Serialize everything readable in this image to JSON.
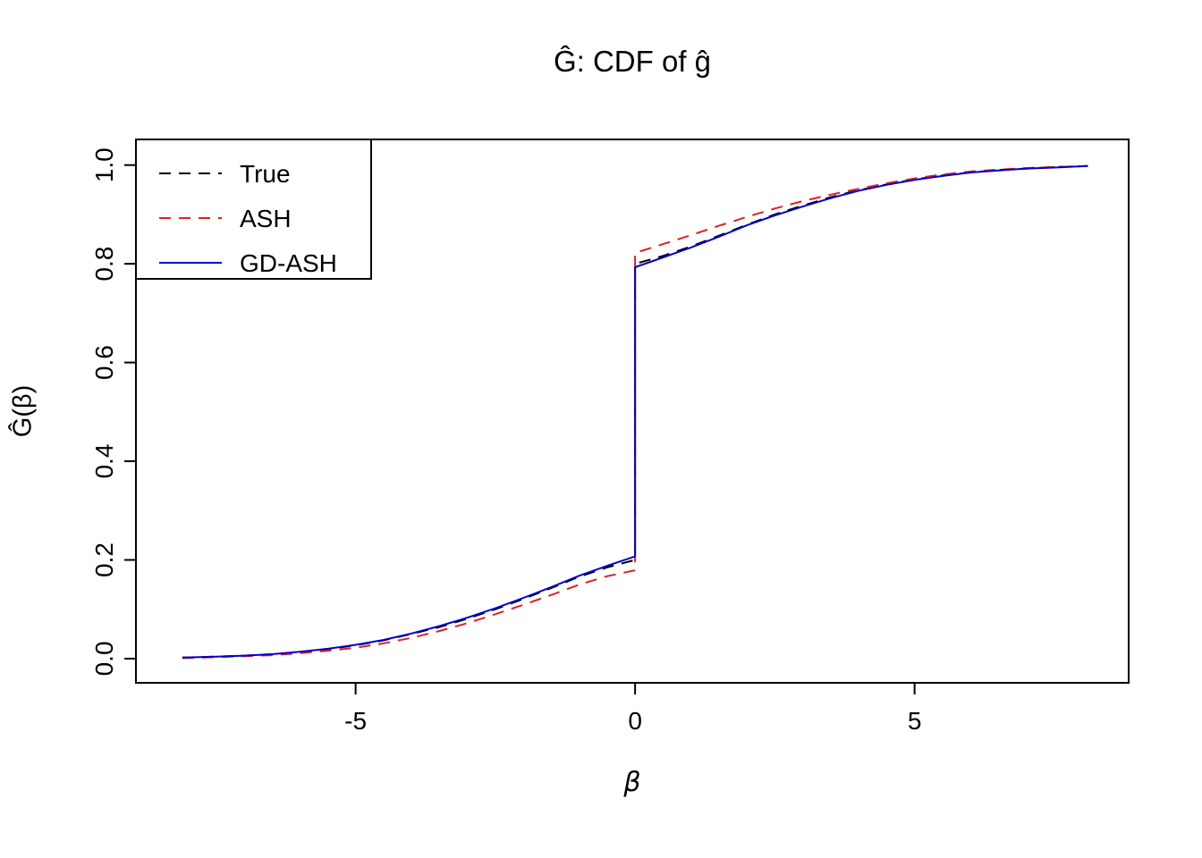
{
  "figure": {
    "title": "Ĝ: CDF of ĝ",
    "x_label": "β",
    "y_label": "Ĝ(β)"
  },
  "chart_data": {
    "type": "line",
    "title": "Ĝ: CDF of ĝ",
    "xlabel": "β",
    "ylabel": "Ĝ(β)",
    "xlim": [
      -8.93,
      8.83
    ],
    "ylim": [
      -0.049,
      1.052
    ],
    "xticks": [
      -5,
      0,
      5
    ],
    "xtick_labels": [
      "-5",
      "0",
      "5"
    ],
    "yticks": [
      0.0,
      0.2,
      0.4,
      0.6,
      0.8,
      1.0
    ],
    "ytick_labels": [
      "0.0",
      "0.2",
      "0.4",
      "0.6",
      "0.8",
      "1.0"
    ],
    "grid": false,
    "legend_position": "top-left",
    "description": "Estimated CDFs with a point mass at beta = 0; curves jump from about 0.2 to about 0.8 at zero.",
    "series": [
      {
        "name": "True",
        "color": "#000000",
        "dash": "dashed",
        "points": [
          [
            -8.1,
            0.002
          ],
          [
            -7.5,
            0.004
          ],
          [
            -7,
            0.006
          ],
          [
            -6.5,
            0.009
          ],
          [
            -6,
            0.013
          ],
          [
            -5.5,
            0.019
          ],
          [
            -5,
            0.027
          ],
          [
            -4.5,
            0.037
          ],
          [
            -4,
            0.05
          ],
          [
            -3.5,
            0.064
          ],
          [
            -3,
            0.081
          ],
          [
            -2.5,
            0.1
          ],
          [
            -2,
            0.121
          ],
          [
            -1.5,
            0.143
          ],
          [
            -1,
            0.166
          ],
          [
            -0.5,
            0.185
          ],
          [
            0,
            0.2
          ],
          [
            0,
            0.8
          ],
          [
            0.5,
            0.816
          ],
          [
            1,
            0.835
          ],
          [
            1.5,
            0.857
          ],
          [
            2,
            0.879
          ],
          [
            2.5,
            0.9
          ],
          [
            3,
            0.918
          ],
          [
            3.5,
            0.935
          ],
          [
            4,
            0.949
          ],
          [
            4.5,
            0.961
          ],
          [
            5,
            0.971
          ],
          [
            5.5,
            0.979
          ],
          [
            6,
            0.985
          ],
          [
            6.5,
            0.99
          ],
          [
            7,
            0.993
          ],
          [
            7.5,
            0.996
          ],
          [
            8.1,
            0.998
          ]
        ]
      },
      {
        "name": "ASH",
        "color": "#e02020",
        "dash": "dashed",
        "points": [
          [
            -8.1,
            0.001
          ],
          [
            -7.5,
            0.003
          ],
          [
            -7,
            0.005
          ],
          [
            -6.5,
            0.007
          ],
          [
            -6,
            0.011
          ],
          [
            -5.5,
            0.016
          ],
          [
            -5,
            0.022
          ],
          [
            -4.5,
            0.031
          ],
          [
            -4,
            0.042
          ],
          [
            -3.5,
            0.056
          ],
          [
            -3,
            0.072
          ],
          [
            -2.5,
            0.09
          ],
          [
            -2,
            0.109
          ],
          [
            -1.5,
            0.129
          ],
          [
            -1,
            0.15
          ],
          [
            -0.5,
            0.167
          ],
          [
            0,
            0.179
          ],
          [
            0,
            0.822
          ],
          [
            0.5,
            0.84
          ],
          [
            1,
            0.858
          ],
          [
            1.5,
            0.877
          ],
          [
            2,
            0.895
          ],
          [
            2.5,
            0.912
          ],
          [
            3,
            0.927
          ],
          [
            3.5,
            0.94
          ],
          [
            4,
            0.952
          ],
          [
            4.5,
            0.963
          ],
          [
            5,
            0.973
          ],
          [
            5.5,
            0.981
          ],
          [
            6,
            0.987
          ],
          [
            6.5,
            0.991
          ],
          [
            7,
            0.994
          ],
          [
            7.5,
            0.996
          ],
          [
            8.1,
            0.998
          ]
        ]
      },
      {
        "name": "GD-ASH",
        "color": "#0000cc",
        "dash": "solid",
        "points": [
          [
            -8.1,
            0.002
          ],
          [
            -7.5,
            0.004
          ],
          [
            -7,
            0.006
          ],
          [
            -6.5,
            0.009
          ],
          [
            -6,
            0.014
          ],
          [
            -5.5,
            0.02
          ],
          [
            -5,
            0.028
          ],
          [
            -4.5,
            0.038
          ],
          [
            -4,
            0.051
          ],
          [
            -3.5,
            0.066
          ],
          [
            -3,
            0.083
          ],
          [
            -2.5,
            0.102
          ],
          [
            -2,
            0.123
          ],
          [
            -1.5,
            0.145
          ],
          [
            -1,
            0.168
          ],
          [
            -0.5,
            0.188
          ],
          [
            0,
            0.207
          ],
          [
            0,
            0.793
          ],
          [
            0.5,
            0.813
          ],
          [
            1,
            0.833
          ],
          [
            1.5,
            0.855
          ],
          [
            2,
            0.878
          ],
          [
            2.5,
            0.898
          ],
          [
            3,
            0.916
          ],
          [
            3.5,
            0.933
          ],
          [
            4,
            0.948
          ],
          [
            4.5,
            0.96
          ],
          [
            5,
            0.97
          ],
          [
            5.5,
            0.978
          ],
          [
            6,
            0.985
          ],
          [
            6.5,
            0.989
          ],
          [
            7,
            0.993
          ],
          [
            7.5,
            0.995
          ],
          [
            8.1,
            0.998
          ]
        ]
      }
    ]
  }
}
